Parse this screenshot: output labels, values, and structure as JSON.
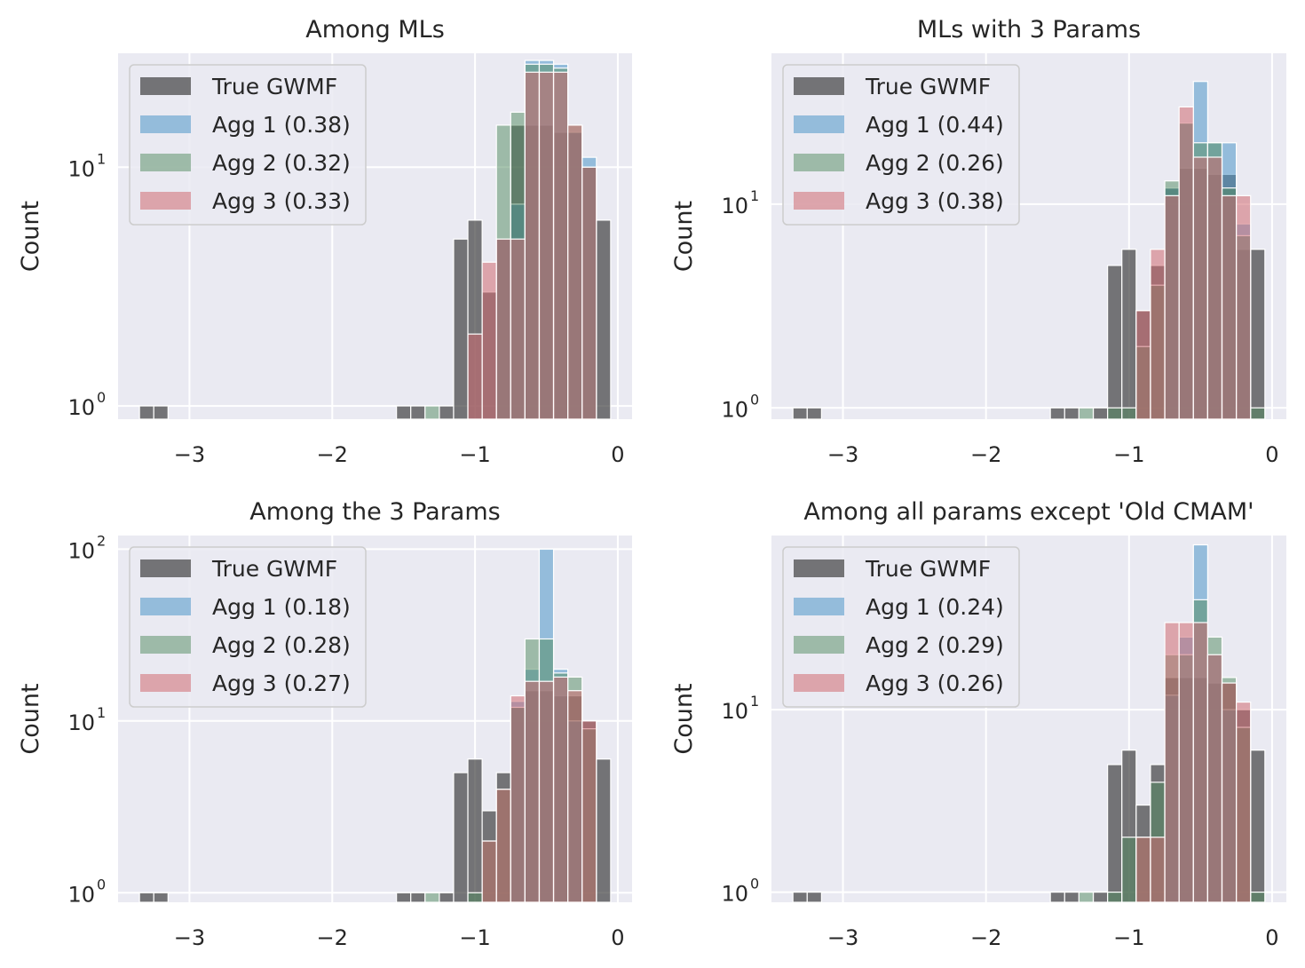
{
  "colors": {
    "background": "#eaeaf2",
    "grid": "#ffffff",
    "True GWMF": "#333333",
    "Agg 1": "#4c96c8",
    "Agg 2": "#4f8a5e",
    "Agg 3": "#d06a71"
  },
  "chart_data": [
    {
      "type": "bar",
      "title": "Among MLs",
      "ylabel": "Count",
      "xlabel": "",
      "xlim": [
        -3.5,
        0.1
      ],
      "yscale": "log",
      "ylim": [
        0.88,
        30
      ],
      "xticks": [
        "−3",
        "−2",
        "−1",
        "0"
      ],
      "yticks": [
        {
          "base": "10",
          "exp": "0"
        },
        {
          "base": "10",
          "exp": "1"
        }
      ],
      "legend": {
        "placement": "top-left",
        "entries": [
          "True GWMF",
          "Agg 1 (0.38)",
          "Agg 2 (0.32)",
          "Agg 3 (0.33)"
        ]
      },
      "bin_starts": [
        -3.35,
        -3.25,
        -1.55,
        -1.45,
        -1.35,
        -1.25,
        -1.15,
        -1.05,
        -0.95,
        -0.85,
        -0.75,
        -0.65,
        -0.55,
        -0.45,
        -0.35,
        -0.25,
        -0.15
      ],
      "series": [
        {
          "name": "True GWMF",
          "values": [
            1,
            1,
            1,
            1,
            0,
            1,
            5,
            6,
            3,
            5,
            15,
            15,
            15,
            14,
            14,
            10,
            6
          ]
        },
        {
          "name": "Agg 1 (0.38)",
          "values": [
            0,
            0,
            0,
            0,
            0,
            0,
            0,
            0,
            0,
            5,
            7,
            28,
            28,
            27,
            14,
            11,
            0
          ]
        },
        {
          "name": "Agg 2 (0.32)",
          "values": [
            0,
            0,
            0,
            0,
            1,
            0,
            0,
            0,
            0,
            15,
            17,
            27,
            27,
            26,
            15,
            10,
            0
          ]
        },
        {
          "name": "Agg 3 (0.33)",
          "values": [
            0,
            0,
            0,
            0,
            0,
            0,
            0,
            2,
            4,
            5,
            5,
            25,
            25,
            25,
            15,
            10,
            0
          ]
        }
      ]
    },
    {
      "type": "bar",
      "title": "MLs with 3 Params",
      "ylabel": "Count",
      "xlabel": "",
      "xlim": [
        -3.5,
        0.1
      ],
      "yscale": "log",
      "ylim": [
        0.88,
        55
      ],
      "xticks": [
        "−3",
        "−2",
        "−1",
        "0"
      ],
      "yticks": [
        {
          "base": "10",
          "exp": "0"
        },
        {
          "base": "10",
          "exp": "1"
        }
      ],
      "legend": {
        "placement": "top-left",
        "entries": [
          "True GWMF",
          "Agg 1 (0.44)",
          "Agg 2 (0.26)",
          "Agg 3 (0.38)"
        ]
      },
      "bin_starts": [
        -3.35,
        -3.25,
        -1.55,
        -1.45,
        -1.35,
        -1.25,
        -1.15,
        -1.05,
        -0.95,
        -0.85,
        -0.75,
        -0.65,
        -0.55,
        -0.45,
        -0.35,
        -0.25,
        -0.15
      ],
      "series": [
        {
          "name": "True GWMF",
          "values": [
            1,
            1,
            1,
            1,
            0,
            1,
            5,
            6,
            3,
            5,
            12,
            15,
            15,
            14,
            14,
            6,
            6
          ]
        },
        {
          "name": "Agg 1 (0.44)",
          "values": [
            0,
            0,
            0,
            0,
            0,
            0,
            0,
            0,
            0,
            0,
            12,
            25,
            40,
            20,
            20,
            8,
            0
          ]
        },
        {
          "name": "Agg 2 (0.26)",
          "values": [
            0,
            0,
            0,
            0,
            1,
            0,
            1,
            1,
            2,
            4,
            13,
            25,
            20,
            20,
            12,
            7,
            1
          ]
        },
        {
          "name": "Agg 3 (0.38)",
          "values": [
            0,
            0,
            0,
            0,
            0,
            0,
            0,
            0,
            3,
            6,
            11,
            30,
            17,
            17,
            11,
            11,
            0
          ]
        }
      ]
    },
    {
      "type": "bar",
      "title": "Among the 3 Params",
      "ylabel": "Count",
      "xlabel": "",
      "xlim": [
        -3.5,
        0.1
      ],
      "yscale": "log",
      "ylim": [
        0.88,
        120
      ],
      "xticks": [
        "−3",
        "−2",
        "−1",
        "0"
      ],
      "yticks": [
        {
          "base": "10",
          "exp": "0"
        },
        {
          "base": "10",
          "exp": "1"
        },
        {
          "base": "10",
          "exp": "2"
        }
      ],
      "legend": {
        "placement": "top-left",
        "entries": [
          "True GWMF",
          "Agg 1 (0.18)",
          "Agg 2 (0.28)",
          "Agg 3 (0.27)"
        ]
      },
      "bin_starts": [
        -3.35,
        -3.25,
        -1.55,
        -1.45,
        -1.35,
        -1.25,
        -1.15,
        -1.05,
        -0.95,
        -0.85,
        -0.75,
        -0.65,
        -0.55,
        -0.45,
        -0.35,
        -0.25,
        -0.15
      ],
      "series": [
        {
          "name": "True GWMF",
          "values": [
            1,
            1,
            1,
            1,
            0,
            1,
            5,
            6,
            3,
            5,
            12,
            15,
            15,
            14,
            14,
            10,
            6
          ]
        },
        {
          "name": "Agg 1 (0.18)",
          "values": [
            0,
            0,
            0,
            0,
            0,
            0,
            0,
            0,
            0,
            0,
            13,
            20,
            100,
            20,
            10,
            0,
            0
          ]
        },
        {
          "name": "Agg 2 (0.28)",
          "values": [
            0,
            0,
            0,
            0,
            1,
            0,
            0,
            1,
            2,
            4,
            12,
            30,
            30,
            19,
            18,
            9,
            0
          ]
        },
        {
          "name": "Agg 3 (0.27)",
          "values": [
            0,
            0,
            0,
            0,
            0,
            0,
            0,
            0,
            2,
            4,
            14,
            17,
            17,
            18,
            15,
            10,
            0
          ]
        }
      ]
    },
    {
      "type": "bar",
      "title": "Among all params except 'Old CMAM'",
      "ylabel": "Count",
      "xlabel": "",
      "xlim": [
        -3.5,
        0.1
      ],
      "yscale": "log",
      "ylim": [
        0.88,
        90
      ],
      "xticks": [
        "−3",
        "−2",
        "−1",
        "0"
      ],
      "yticks": [
        {
          "base": "10",
          "exp": "0"
        },
        {
          "base": "10",
          "exp": "1"
        }
      ],
      "legend": {
        "placement": "top-left",
        "entries": [
          "True GWMF",
          "Agg 1 (0.24)",
          "Agg 2 (0.29)",
          "Agg 3 (0.26)"
        ]
      },
      "bin_starts": [
        -3.35,
        -3.25,
        -1.55,
        -1.45,
        -1.35,
        -1.25,
        -1.15,
        -1.05,
        -0.95,
        -0.85,
        -0.75,
        -0.65,
        -0.55,
        -0.45,
        -0.35,
        -0.25,
        -0.15
      ],
      "series": [
        {
          "name": "True GWMF",
          "values": [
            1,
            1,
            1,
            1,
            0,
            1,
            5,
            6,
            3,
            5,
            15,
            15,
            15,
            14,
            14,
            10,
            6
          ]
        },
        {
          "name": "Agg 1 (0.24)",
          "values": [
            0,
            0,
            0,
            0,
            0,
            0,
            0,
            0,
            0,
            0,
            12,
            25,
            80,
            20,
            10,
            0,
            0
          ]
        },
        {
          "name": "Agg 2 (0.29)",
          "values": [
            0,
            0,
            0,
            0,
            1,
            0,
            1,
            2,
            2,
            4,
            20,
            20,
            40,
            25,
            15,
            8,
            1
          ]
        },
        {
          "name": "Agg 3 (0.26)",
          "values": [
            0,
            0,
            0,
            0,
            0,
            0,
            0,
            0,
            2,
            2,
            30,
            30,
            30,
            20,
            14,
            11,
            0
          ]
        }
      ]
    }
  ]
}
